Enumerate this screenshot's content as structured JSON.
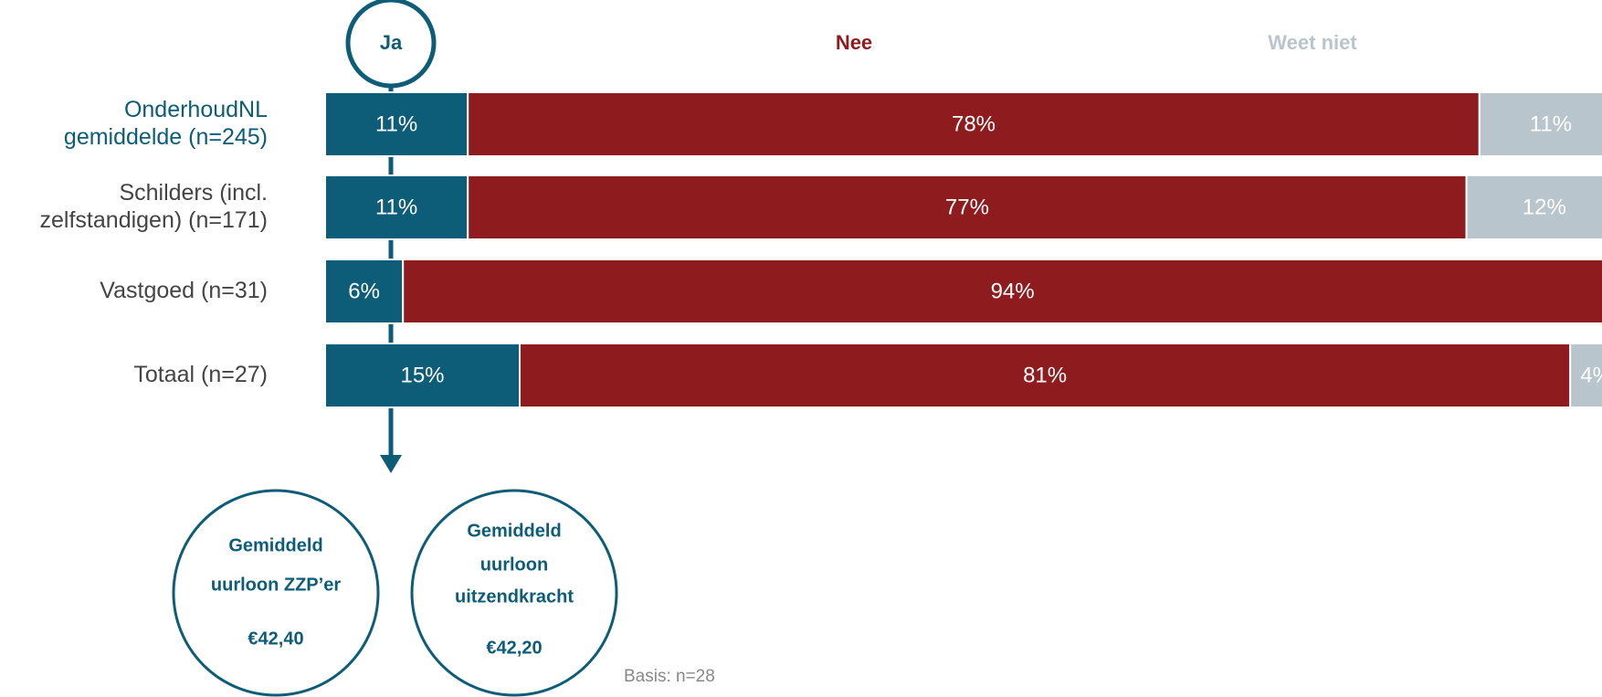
{
  "chart_data": {
    "type": "bar",
    "orientation": "horizontal",
    "stacked": true,
    "categories": [
      "OnderhoudNL\ngemiddelde (n=245)",
      "Schilders (incl.\nzelfstandigen) (n=171)",
      "Vastgoed (n=31)",
      "Totaal (n=27)"
    ],
    "highlight_category": 0,
    "xlim": [
      0,
      100
    ],
    "series": [
      {
        "name": "Ja",
        "color": "#0d5c78",
        "values": [
          11,
          11,
          6,
          15
        ],
        "value_labels": [
          "11%",
          "11%",
          "6%",
          "15%"
        ]
      },
      {
        "name": "Nee",
        "color": "#8e1b1e",
        "values": [
          78,
          77,
          94,
          81
        ],
        "value_labels": [
          "78%",
          "77%",
          "94%",
          "81%"
        ]
      },
      {
        "name": "Weet niet",
        "color": "#b9c5cd",
        "values": [
          11,
          12,
          null,
          4
        ],
        "value_labels": [
          "11%",
          "12%",
          null,
          "4%"
        ]
      }
    ],
    "annotations": [
      {
        "lines": [
          "Gemiddeld",
          "uurloon ZZP’er"
        ],
        "value": "€42,40"
      },
      {
        "lines": [
          "Gemiddeld",
          "uurloon",
          "uitzendkracht"
        ],
        "value": "€42,20"
      }
    ],
    "note": "Basis: n=28"
  }
}
